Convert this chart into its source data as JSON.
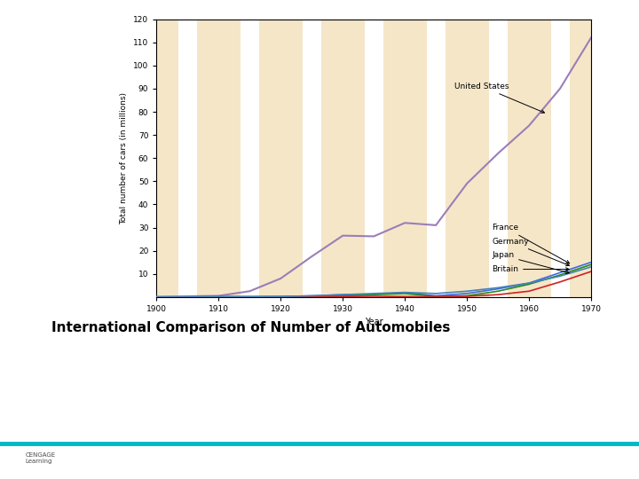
{
  "years": [
    1900,
    1905,
    1910,
    1915,
    1920,
    1925,
    1930,
    1935,
    1940,
    1945,
    1950,
    1955,
    1960,
    1965,
    1970
  ],
  "united_states": [
    0.1,
    0.3,
    0.5,
    2.5,
    8.0,
    17.5,
    26.5,
    26.2,
    32.0,
    31.0,
    49.0,
    62.0,
    74.0,
    90.0,
    112.0
  ],
  "france": [
    0.0,
    0.0,
    0.1,
    0.1,
    0.2,
    0.5,
    1.0,
    1.2,
    1.8,
    0.5,
    1.5,
    3.5,
    6.0,
    10.5,
    15.0
  ],
  "germany": [
    0.0,
    0.0,
    0.1,
    0.1,
    0.1,
    0.3,
    0.5,
    1.0,
    1.5,
    0.2,
    0.5,
    2.5,
    5.5,
    9.5,
    14.0
  ],
  "japan": [
    0.0,
    0.0,
    0.0,
    0.0,
    0.0,
    0.1,
    0.2,
    0.3,
    0.2,
    0.1,
    0.3,
    1.0,
    2.5,
    6.5,
    11.0
  ],
  "britain": [
    0.0,
    0.0,
    0.1,
    0.1,
    0.2,
    0.5,
    1.0,
    1.5,
    2.0,
    1.5,
    2.5,
    4.0,
    6.0,
    9.0,
    13.0
  ],
  "us_color": "#9b7eb8",
  "france_color": "#4169e1",
  "germany_color": "#228b22",
  "japan_color": "#cc2222",
  "britain_color": "#4682b4",
  "bg_color": "#f5e6c8",
  "stripe_color": "#ffffff",
  "xlabel": "Year",
  "ylabel": "Total number of cars (in millions)",
  "xlim": [
    1900,
    1970
  ],
  "ylim": [
    0,
    120
  ],
  "yticks": [
    10,
    20,
    30,
    40,
    50,
    60,
    70,
    80,
    90,
    100,
    110,
    120
  ],
  "xticks": [
    1900,
    1910,
    1920,
    1930,
    1940,
    1950,
    1960,
    1970
  ],
  "caption": "International Comparison of Number of Automobiles",
  "cengage_color": "#00b8c8"
}
